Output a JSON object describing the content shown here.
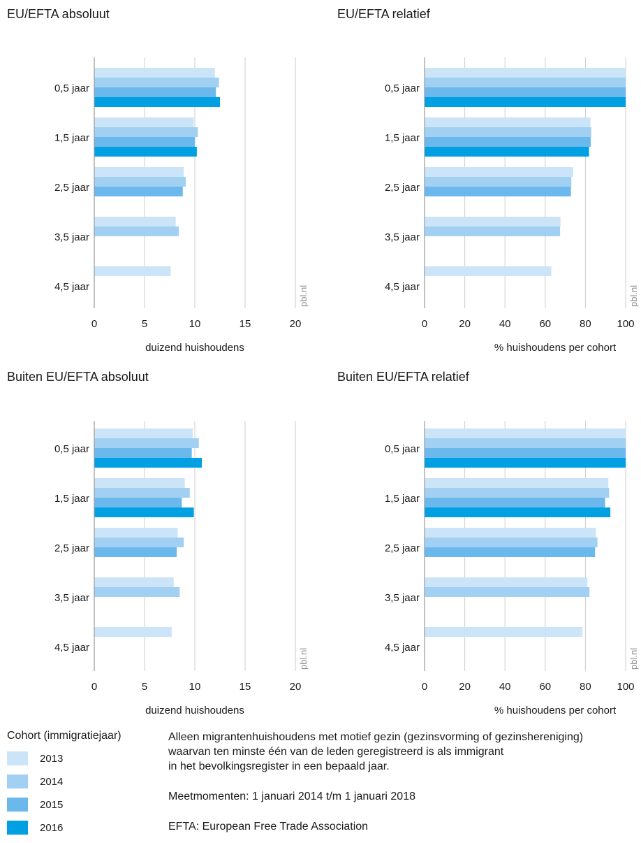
{
  "colors": {
    "2013": "#cce4f7",
    "2014": "#a2d0f3",
    "2015": "#6ab8ec",
    "2016": "#00a0e2",
    "grid": "#cccccc",
    "axis": "#999999"
  },
  "chart_data": [
    {
      "type": "bar",
      "orientation": "horizontal",
      "title": "EU/EFTA absoluut",
      "xlabel": "duizend huishoudens",
      "source": "pbl.nl",
      "categories": [
        "0,5 jaar",
        "1,5 jaar",
        "2,5 jaar",
        "3,5 jaar",
        "4,5 jaar"
      ],
      "xlim": [
        0,
        20
      ],
      "xticks": [
        0,
        5,
        10,
        15,
        20
      ],
      "grid": true,
      "series": [
        {
          "name": "2013",
          "values": [
            12.0,
            9.9,
            8.9,
            8.1,
            7.6
          ]
        },
        {
          "name": "2014",
          "values": [
            12.4,
            10.3,
            9.1,
            8.4,
            null
          ]
        },
        {
          "name": "2015",
          "values": [
            12.1,
            10.0,
            8.8,
            null,
            null
          ]
        },
        {
          "name": "2016",
          "values": [
            12.5,
            10.2,
            null,
            null,
            null
          ]
        }
      ]
    },
    {
      "type": "bar",
      "orientation": "horizontal",
      "title": "EU/EFTA relatief",
      "xlabel": "% huishoudens per cohort",
      "source": "pbl.nl",
      "categories": [
        "0,5 jaar",
        "1,5 jaar",
        "2,5 jaar",
        "3,5 jaar",
        "4,5 jaar"
      ],
      "xlim": [
        0,
        100
      ],
      "xticks": [
        0,
        20,
        40,
        60,
        80,
        100
      ],
      "grid": true,
      "series": [
        {
          "name": "2013",
          "values": [
            100,
            82.5,
            73.9,
            67.6,
            63.0
          ]
        },
        {
          "name": "2014",
          "values": [
            100,
            82.9,
            73.0,
            67.4,
            null
          ]
        },
        {
          "name": "2015",
          "values": [
            100,
            82.6,
            72.8,
            null,
            null
          ]
        },
        {
          "name": "2016",
          "values": [
            100,
            81.8,
            null,
            null,
            null
          ]
        }
      ]
    },
    {
      "type": "bar",
      "orientation": "horizontal",
      "title": "Buiten EU/EFTA absoluut",
      "xlabel": "duizend huishoudens",
      "source": "pbl.nl",
      "categories": [
        "0,5 jaar",
        "1,5 jaar",
        "2,5 jaar",
        "3,5 jaar",
        "4,5 jaar"
      ],
      "xlim": [
        0,
        20
      ],
      "xticks": [
        0,
        5,
        10,
        15,
        20
      ],
      "grid": true,
      "series": [
        {
          "name": "2013",
          "values": [
            9.8,
            9.0,
            8.3,
            7.9,
            7.7
          ]
        },
        {
          "name": "2014",
          "values": [
            10.4,
            9.5,
            8.9,
            8.5,
            null
          ]
        },
        {
          "name": "2015",
          "values": [
            9.7,
            8.7,
            8.2,
            null,
            null
          ]
        },
        {
          "name": "2016",
          "values": [
            10.7,
            9.9,
            null,
            null,
            null
          ]
        }
      ]
    },
    {
      "type": "bar",
      "orientation": "horizontal",
      "title": "Buiten EU/EFTA relatief",
      "xlabel": "% huishoudens per cohort",
      "source": "pbl.nl",
      "categories": [
        "0,5 jaar",
        "1,5 jaar",
        "2,5 jaar",
        "3,5 jaar",
        "4,5 jaar"
      ],
      "xlim": [
        0,
        100
      ],
      "xticks": [
        0,
        20,
        40,
        60,
        80,
        100
      ],
      "grid": true,
      "series": [
        {
          "name": "2013",
          "values": [
            100,
            91.4,
            85.2,
            81.0,
            78.5
          ]
        },
        {
          "name": "2014",
          "values": [
            100,
            91.8,
            86.0,
            82.0,
            null
          ]
        },
        {
          "name": "2015",
          "values": [
            100,
            89.8,
            84.8,
            null,
            null
          ]
        },
        {
          "name": "2016",
          "values": [
            100,
            92.4,
            null,
            null,
            null
          ]
        }
      ]
    }
  ],
  "legend": {
    "title": "Cohort (immigratiejaar)",
    "items": [
      {
        "label": "2013",
        "color": "#cce4f7"
      },
      {
        "label": "2014",
        "color": "#a2d0f3"
      },
      {
        "label": "2015",
        "color": "#6ab8ec"
      },
      {
        "label": "2016",
        "color": "#00a0e2"
      }
    ]
  },
  "notes": {
    "line1": "Alleen migrantenhuishoudens met motief gezin (gezinsvorming of gezinshereniging)",
    "line2": "waarvan ten minste één van de leden geregistreerd is als immigrant",
    "line3": "in het bevolkingsregister in een bepaald jaar.",
    "line4": "Meetmomenten: 1 januari 2014 t/m 1 januari 2018",
    "line5": "EFTA: European Free Trade Association"
  }
}
